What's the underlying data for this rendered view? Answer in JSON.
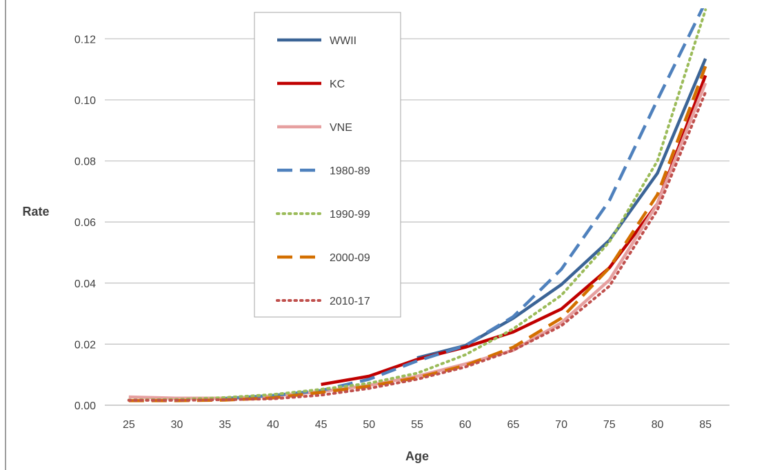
{
  "chart_data": {
    "type": "line",
    "xlabel": "Age",
    "ylabel": "Rate",
    "x": [
      25,
      30,
      35,
      40,
      45,
      50,
      55,
      60,
      65,
      70,
      75,
      80,
      85
    ],
    "xlim": [
      22.5,
      87.5
    ],
    "ylim": [
      0,
      0.13
    ],
    "yticks": [
      0.0,
      0.02,
      0.04,
      0.06,
      0.08,
      0.1,
      0.12
    ],
    "ytick_labels": [
      "0.00",
      "0.02",
      "0.04",
      "0.06",
      "0.08",
      "0.10",
      "0.12"
    ],
    "xtick_labels": [
      "25",
      "30",
      "35",
      "40",
      "45",
      "50",
      "55",
      "60",
      "65",
      "70",
      "75",
      "80",
      "85"
    ],
    "grid": "horizontal",
    "legend_position": "top-center",
    "series": [
      {
        "name": "WWII",
        "color": "#3B6496",
        "style": "solid",
        "x": [
          55,
          60,
          65,
          70,
          75,
          80,
          85
        ],
        "y": [
          0.0155,
          0.0195,
          0.0285,
          0.0395,
          0.054,
          0.076,
          0.1135
        ]
      },
      {
        "name": "KC",
        "color": "#C00000",
        "style": "solid",
        "x": [
          45,
          50,
          55,
          60,
          65,
          70,
          75,
          80,
          85
        ],
        "y": [
          0.0068,
          0.0095,
          0.015,
          0.019,
          0.024,
          0.0315,
          0.045,
          0.066,
          0.108
        ]
      },
      {
        "name": "VNE",
        "color": "#E6A0A0",
        "style": "solid",
        "x": [
          25,
          30,
          35,
          40,
          45,
          50,
          55,
          60,
          65,
          70,
          75,
          80,
          85
        ],
        "y": [
          0.0027,
          0.0023,
          0.0023,
          0.003,
          0.0045,
          0.0065,
          0.0095,
          0.0135,
          0.018,
          0.027,
          0.041,
          0.066,
          0.1055
        ]
      },
      {
        "name": "1980-89",
        "color": "#4F81BD",
        "style": "dash",
        "x": [
          35,
          40,
          45,
          50,
          55,
          60,
          65,
          70,
          75,
          80,
          85
        ],
        "y": [
          0.0022,
          0.0032,
          0.0048,
          0.0085,
          0.0145,
          0.0195,
          0.029,
          0.0445,
          0.067,
          0.1,
          0.132
        ]
      },
      {
        "name": "1990-99",
        "color": "#9BBB59",
        "style": "dot",
        "x": [
          25,
          30,
          35,
          40,
          45,
          50,
          55,
          60,
          65,
          70,
          75,
          80,
          85
        ],
        "y": [
          0.0017,
          0.0019,
          0.0025,
          0.0035,
          0.0052,
          0.0072,
          0.0105,
          0.0165,
          0.025,
          0.036,
          0.0535,
          0.08,
          0.1295
        ]
      },
      {
        "name": "2000-09",
        "color": "#D36F00",
        "style": "longdash",
        "x": [
          25,
          30,
          35,
          40,
          45,
          50,
          55,
          60,
          65,
          70,
          75,
          80,
          85
        ],
        "y": [
          0.0015,
          0.0015,
          0.0017,
          0.0024,
          0.0042,
          0.0062,
          0.009,
          0.013,
          0.019,
          0.0285,
          0.045,
          0.069,
          0.111
        ]
      },
      {
        "name": "2010-17",
        "color": "#C0504D",
        "style": "dot",
        "x": [
          25,
          30,
          35,
          40,
          45,
          50,
          55,
          60,
          65,
          70,
          75,
          80,
          85
        ],
        "y": [
          0.0016,
          0.0016,
          0.0018,
          0.0021,
          0.0033,
          0.0055,
          0.0085,
          0.0125,
          0.018,
          0.026,
          0.039,
          0.064,
          0.1025
        ]
      }
    ]
  }
}
